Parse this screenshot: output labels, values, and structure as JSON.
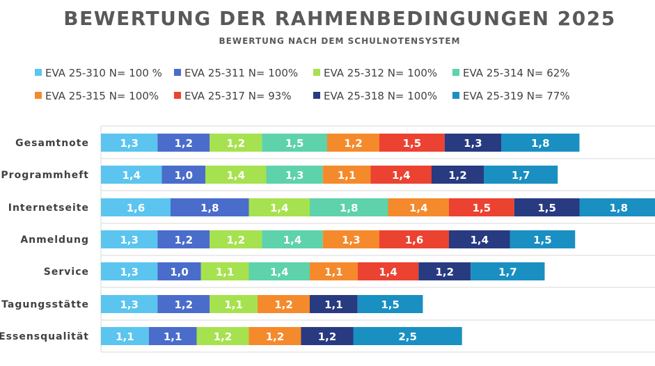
{
  "chart_data": {
    "type": "bar",
    "orientation": "horizontal",
    "stacked": true,
    "title": "BEWERTUNG DER RAHMENBEDINGUNGEN 2025",
    "subtitle": "BEWERTUNG NACH DEM SCHULNOTENSYSTEM",
    "legend_position": "top",
    "grid": true,
    "categories": [
      "Gesamtnote",
      "Programmheft",
      "Internetseite",
      "Anmeldung",
      "Service",
      "Tagungsstätte",
      "Essensqualität"
    ],
    "series": [
      {
        "name": "EVA 25-310  N= 100 %",
        "color": "#5bc5ef",
        "values": [
          1.3,
          1.4,
          1.6,
          1.3,
          1.3,
          1.3,
          1.1
        ],
        "labels": [
          "1,3",
          "1,4",
          "1,6",
          "1,3",
          "1,3",
          "1,3",
          "1,1"
        ]
      },
      {
        "name": "EVA 25-311  N= 100%",
        "color": "#4a6ccb",
        "values": [
          1.2,
          1.0,
          1.8,
          1.2,
          1.0,
          1.2,
          1.1
        ],
        "labels": [
          "1,2",
          "1,0",
          "1,8",
          "1,2",
          "1,0",
          "1,2",
          "1,1"
        ]
      },
      {
        "name": "EVA 25-312  N= 100%",
        "color": "#a6e24f",
        "values": [
          1.2,
          1.4,
          1.4,
          1.2,
          1.1,
          1.1,
          1.2
        ],
        "labels": [
          "1,2",
          "1,4",
          "1,4",
          "1,2",
          "1,1",
          "1,1",
          "1,2"
        ]
      },
      {
        "name": "EVA 25-314  N= 62%",
        "color": "#5ed2aa",
        "values": [
          1.5,
          1.3,
          1.8,
          1.4,
          1.4,
          null,
          null
        ],
        "labels": [
          "1,5",
          "1,3",
          "1,8",
          "1,4",
          "1,4",
          "",
          ""
        ]
      },
      {
        "name": "EVA 25-315  N= 100%",
        "color": "#f58a2c",
        "values": [
          1.2,
          1.1,
          1.4,
          1.3,
          1.1,
          1.2,
          1.2
        ],
        "labels": [
          "1,2",
          "1,1",
          "1,4",
          "1,3",
          "1,1",
          "1,2",
          "1,2"
        ]
      },
      {
        "name": "EVA 25-317  N= 93%",
        "color": "#ec4231",
        "values": [
          1.5,
          1.4,
          1.5,
          1.6,
          1.4,
          null,
          null
        ],
        "labels": [
          "1,5",
          "1,4",
          "1,5",
          "1,6",
          "1,4",
          "",
          ""
        ]
      },
      {
        "name": "EVA 25-318  N= 100%",
        "color": "#283a80",
        "values": [
          1.3,
          1.2,
          1.5,
          1.4,
          1.2,
          1.1,
          1.2
        ],
        "labels": [
          "1,3",
          "1,2",
          "1,5",
          "1,4",
          "1,2",
          "1,1",
          "1,2"
        ]
      },
      {
        "name": "EVA 25-319  N= 77%",
        "color": "#1a8fc2",
        "values": [
          1.8,
          1.7,
          1.8,
          1.5,
          1.7,
          1.5,
          2.5
        ],
        "labels": [
          "1,8",
          "1,7",
          "1,8",
          "1,5",
          "1,7",
          "1,5",
          "2,5"
        ]
      }
    ]
  }
}
